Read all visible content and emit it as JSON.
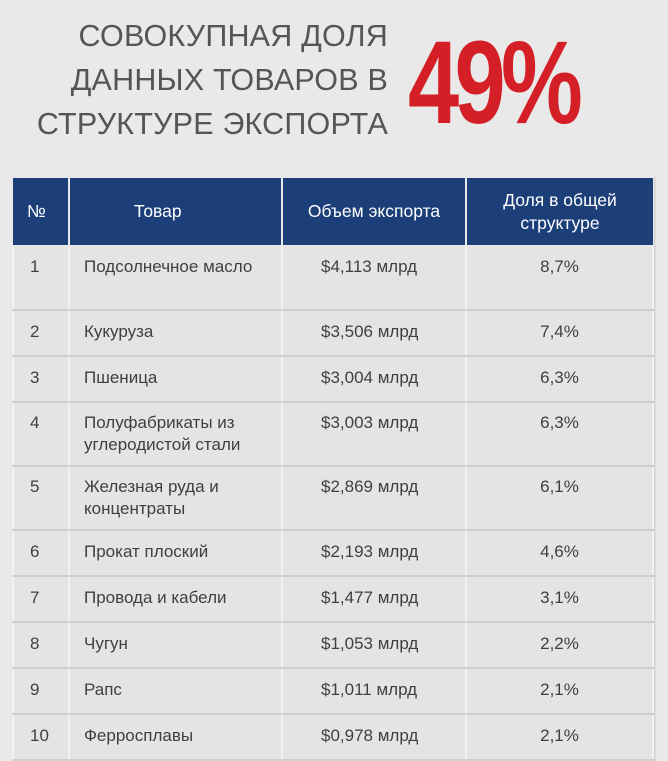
{
  "headline": {
    "line1": "СОВОКУПНАЯ ДОЛЯ",
    "line2": "ДАННЫХ ТОВАРОВ В",
    "line3": "СТРУКТУРЕ ЭКСПОРТА",
    "percent": "49%"
  },
  "colors": {
    "header_bg": "#1c3f7a",
    "accent_red": "#d51f26",
    "page_bg": "#e9e9ea"
  },
  "table": {
    "headers": {
      "number": "№",
      "product": "Товар",
      "volume": "Объем экспорта",
      "share": "Доля в общей структуре"
    },
    "rows": [
      {
        "n": "1",
        "product": "Подсолнечное масло",
        "volume": "$4,113 млрд",
        "share": "8,7%"
      },
      {
        "n": "2",
        "product": "Кукуруза",
        "volume": "$3,506 млрд",
        "share": "7,4%"
      },
      {
        "n": "3",
        "product": "Пшеница",
        "volume": "$3,004 млрд",
        "share": "6,3%"
      },
      {
        "n": "4",
        "product": "Полуфабрикаты из углеродистой стали",
        "volume": "$3,003 млрд",
        "share": "6,3%"
      },
      {
        "n": "5",
        "product": "Железная руда и концентраты",
        "volume": "$2,869 млрд",
        "share": "6,1%"
      },
      {
        "n": "6",
        "product": "Прокат плоский",
        "volume": "$2,193 млрд",
        "share": "4,6%"
      },
      {
        "n": "7",
        "product": "Провода и кабели",
        "volume": "$1,477 млрд",
        "share": "3,1%"
      },
      {
        "n": "8",
        "product": "Чугун",
        "volume": "$1,053 млрд",
        "share": "2,2%"
      },
      {
        "n": "9",
        "product": "Рапс",
        "volume": "$1,011 млрд",
        "share": "2,1%"
      },
      {
        "n": "10",
        "product": "Ферросплавы",
        "volume": "$0,978 млрд",
        "share": "2,1%"
      }
    ]
  }
}
